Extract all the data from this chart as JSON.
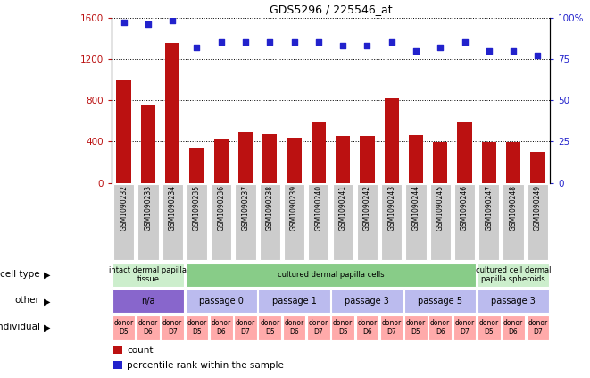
{
  "title": "GDS5296 / 225546_at",
  "samples": [
    "GSM1090232",
    "GSM1090233",
    "GSM1090234",
    "GSM1090235",
    "GSM1090236",
    "GSM1090237",
    "GSM1090238",
    "GSM1090239",
    "GSM1090240",
    "GSM1090241",
    "GSM1090242",
    "GSM1090243",
    "GSM1090244",
    "GSM1090245",
    "GSM1090246",
    "GSM1090247",
    "GSM1090248",
    "GSM1090249"
  ],
  "counts": [
    1000,
    750,
    1350,
    330,
    430,
    490,
    470,
    440,
    590,
    450,
    450,
    820,
    460,
    390,
    590,
    390,
    390,
    300
  ],
  "percentile": [
    97,
    96,
    98,
    82,
    85,
    85,
    85,
    85,
    85,
    83,
    83,
    85,
    80,
    82,
    85,
    80,
    80,
    77
  ],
  "bar_color": "#bb1111",
  "scatter_color": "#2222cc",
  "ylim_left": [
    0,
    1600
  ],
  "ylim_right": [
    0,
    100
  ],
  "yticks_left": [
    0,
    400,
    800,
    1200,
    1600
  ],
  "yticks_right": [
    0,
    25,
    50,
    75,
    100
  ],
  "cell_type_groups": [
    {
      "label": "intact dermal papilla\ntissue",
      "start": 0,
      "end": 3,
      "color": "#cceecc"
    },
    {
      "label": "cultured dermal papilla cells",
      "start": 3,
      "end": 15,
      "color": "#88cc88"
    },
    {
      "label": "cultured cell dermal\npapilla spheroids",
      "start": 15,
      "end": 18,
      "color": "#cceecc"
    }
  ],
  "other_groups": [
    {
      "label": "n/a",
      "start": 0,
      "end": 3,
      "color": "#8866cc"
    },
    {
      "label": "passage 0",
      "start": 3,
      "end": 6,
      "color": "#bbbbee"
    },
    {
      "label": "passage 1",
      "start": 6,
      "end": 9,
      "color": "#bbbbee"
    },
    {
      "label": "passage 3",
      "start": 9,
      "end": 12,
      "color": "#bbbbee"
    },
    {
      "label": "passage 5",
      "start": 12,
      "end": 15,
      "color": "#bbbbee"
    },
    {
      "label": "passage 3",
      "start": 15,
      "end": 18,
      "color": "#bbbbee"
    }
  ],
  "individual_groups": [
    {
      "label": "donor\nD5",
      "start": 0,
      "end": 1
    },
    {
      "label": "donor\nD6",
      "start": 1,
      "end": 2
    },
    {
      "label": "donor\nD7",
      "start": 2,
      "end": 3
    },
    {
      "label": "donor\nD5",
      "start": 3,
      "end": 4
    },
    {
      "label": "donor\nD6",
      "start": 4,
      "end": 5
    },
    {
      "label": "donor\nD7",
      "start": 5,
      "end": 6
    },
    {
      "label": "donor\nD5",
      "start": 6,
      "end": 7
    },
    {
      "label": "donor\nD6",
      "start": 7,
      "end": 8
    },
    {
      "label": "donor\nD7",
      "start": 8,
      "end": 9
    },
    {
      "label": "donor\nD5",
      "start": 9,
      "end": 10
    },
    {
      "label": "donor\nD6",
      "start": 10,
      "end": 11
    },
    {
      "label": "donor\nD7",
      "start": 11,
      "end": 12
    },
    {
      "label": "donor\nD5",
      "start": 12,
      "end": 13
    },
    {
      "label": "donor\nD6",
      "start": 13,
      "end": 14
    },
    {
      "label": "donor\nD7",
      "start": 14,
      "end": 15
    },
    {
      "label": "donor\nD5",
      "start": 15,
      "end": 16
    },
    {
      "label": "donor\nD6",
      "start": 16,
      "end": 17
    },
    {
      "label": "donor\nD7",
      "start": 17,
      "end": 18
    }
  ],
  "individual_color": "#ffaaaa",
  "row_labels": [
    "cell type",
    "other",
    "individual"
  ],
  "legend_count_color": "#bb1111",
  "legend_scatter_color": "#2222cc",
  "background_color": "#ffffff",
  "xtick_bg": "#cccccc",
  "chart_bg": "#ffffff"
}
